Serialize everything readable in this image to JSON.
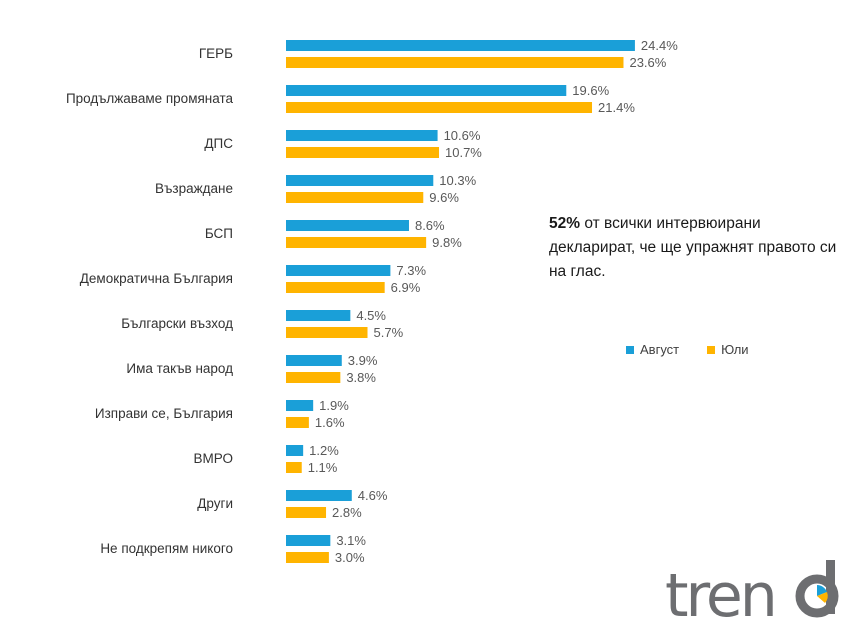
{
  "colors": {
    "august": "#1a9fd8",
    "july": "#ffb400",
    "logo_gray": "#6d6e71"
  },
  "chart_data": {
    "type": "bar",
    "orientation": "horizontal",
    "categories": [
      "ГЕРБ",
      "Продължаваме промяната",
      "ДПС",
      "Възраждане",
      "БСП",
      "Демократична България",
      "Български възход",
      "Има такъв народ",
      "Изправи се, България",
      "ВМРО",
      "Други",
      "Не подкрепям никого"
    ],
    "series": [
      {
        "name": "Август",
        "values": [
          24.4,
          19.6,
          10.6,
          10.3,
          8.6,
          7.3,
          4.5,
          3.9,
          1.9,
          1.2,
          4.6,
          3.1
        ],
        "labels": [
          "24.4%",
          "19.6%",
          "10.6%",
          "10.3%",
          "8.6%",
          "7.3%",
          "4.5%",
          "3.9%",
          "1.9%",
          "1.2%",
          "4.6%",
          "3.1%"
        ]
      },
      {
        "name": "Юли",
        "values": [
          23.6,
          21.4,
          10.7,
          9.6,
          9.8,
          6.9,
          5.7,
          3.8,
          1.6,
          1.1,
          2.8,
          3.0
        ],
        "labels": [
          "23.6%",
          "21.4%",
          "10.7%",
          "9.6%",
          "9.8%",
          "6.9%",
          "5.7%",
          "3.8%",
          "1.6%",
          "1.1%",
          "2.8%",
          "3.0%"
        ]
      }
    ],
    "xlim": [
      0,
      30
    ],
    "grid": false,
    "legend_position": "right"
  },
  "annotation": {
    "bold": "52%",
    "text": " от всички интервюирани декларират, че ще упражнят правото си на глас."
  },
  "logo": {
    "text": "trend"
  }
}
